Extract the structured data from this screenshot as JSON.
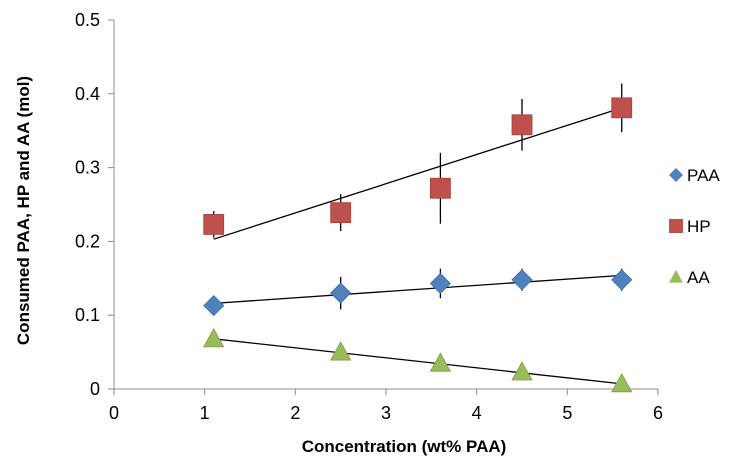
{
  "chart_data": {
    "type": "scatter",
    "title": "",
    "xlabel": "Concentration (wt% PAA)",
    "ylabel": "Consumed PAA, HP and AA (mol)",
    "xlim": [
      0,
      6
    ],
    "ylim": [
      0,
      0.5
    ],
    "x_ticks": [
      "0",
      "1",
      "2",
      "3",
      "4",
      "5",
      "6"
    ],
    "y_ticks": [
      "0",
      "0.1",
      "0.2",
      "0.3",
      "0.4",
      "0.5"
    ],
    "grid": false,
    "legend_position": "right",
    "series": [
      {
        "name": "PAA",
        "marker": "diamond",
        "color": "#4f81bd",
        "x": [
          1.1,
          2.5,
          3.6,
          4.5,
          5.6
        ],
        "y": [
          0.113,
          0.13,
          0.143,
          0.148,
          0.148
        ],
        "error": [
          0.005,
          0.022,
          0.02,
          0.015,
          0.015
        ],
        "trendline": {
          "x": [
            1.1,
            5.6
          ],
          "y": [
            0.116,
            0.154
          ]
        }
      },
      {
        "name": "HP",
        "marker": "square",
        "color": "#c0504d",
        "x": [
          1.1,
          2.5,
          3.6,
          4.5,
          5.6
        ],
        "y": [
          0.223,
          0.239,
          0.272,
          0.358,
          0.381
        ],
        "error": [
          0.018,
          0.025,
          0.048,
          0.035,
          0.033
        ],
        "trendline": {
          "x": [
            1.1,
            5.6
          ],
          "y": [
            0.203,
            0.381
          ]
        }
      },
      {
        "name": "AA",
        "marker": "triangle",
        "color": "#9bbb59",
        "x": [
          1.1,
          2.5,
          3.6,
          4.5,
          5.6
        ],
        "y": [
          0.068,
          0.05,
          0.035,
          0.023,
          0.007
        ],
        "error": [
          0.004,
          0.004,
          0.004,
          0.004,
          0.004
        ],
        "trendline": {
          "x": [
            1.1,
            5.6
          ],
          "y": [
            0.068,
            0.007
          ]
        }
      }
    ]
  }
}
